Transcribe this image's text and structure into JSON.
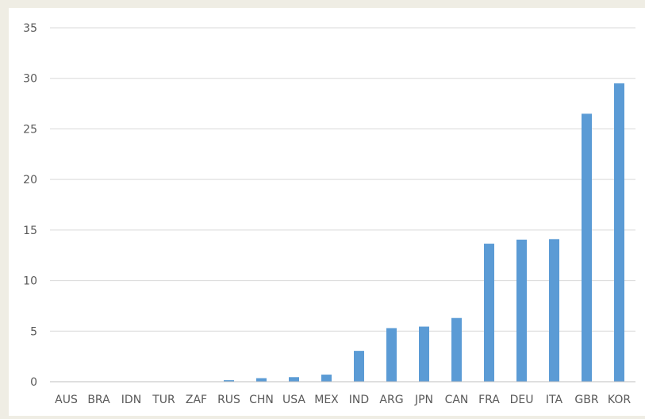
{
  "chart_data": {
    "type": "bar",
    "categories": [
      "AUS",
      "BRA",
      "IDN",
      "TUR",
      "ZAF",
      "RUS",
      "CHN",
      "USA",
      "MEX",
      "IND",
      "ARG",
      "JPN",
      "CAN",
      "FRA",
      "DEU",
      "ITA",
      "GBR",
      "KOR"
    ],
    "values": [
      0,
      0,
      0,
      0,
      0.02,
      0.15,
      0.35,
      0.45,
      0.7,
      3.05,
      5.3,
      5.45,
      6.3,
      13.65,
      14.05,
      14.1,
      26.5,
      29.5
    ],
    "title": "",
    "xlabel": "",
    "ylabel": "",
    "ylim": [
      0,
      35
    ],
    "yticks": [
      "0",
      "5",
      "10",
      "15",
      "20",
      "25",
      "30",
      "35"
    ],
    "grid": true,
    "legend": "none",
    "bar_color": "#5b9bd5",
    "grid_color": "#d9d9d9",
    "axis_color": "#bfbfbf",
    "label_color": "#595959"
  }
}
